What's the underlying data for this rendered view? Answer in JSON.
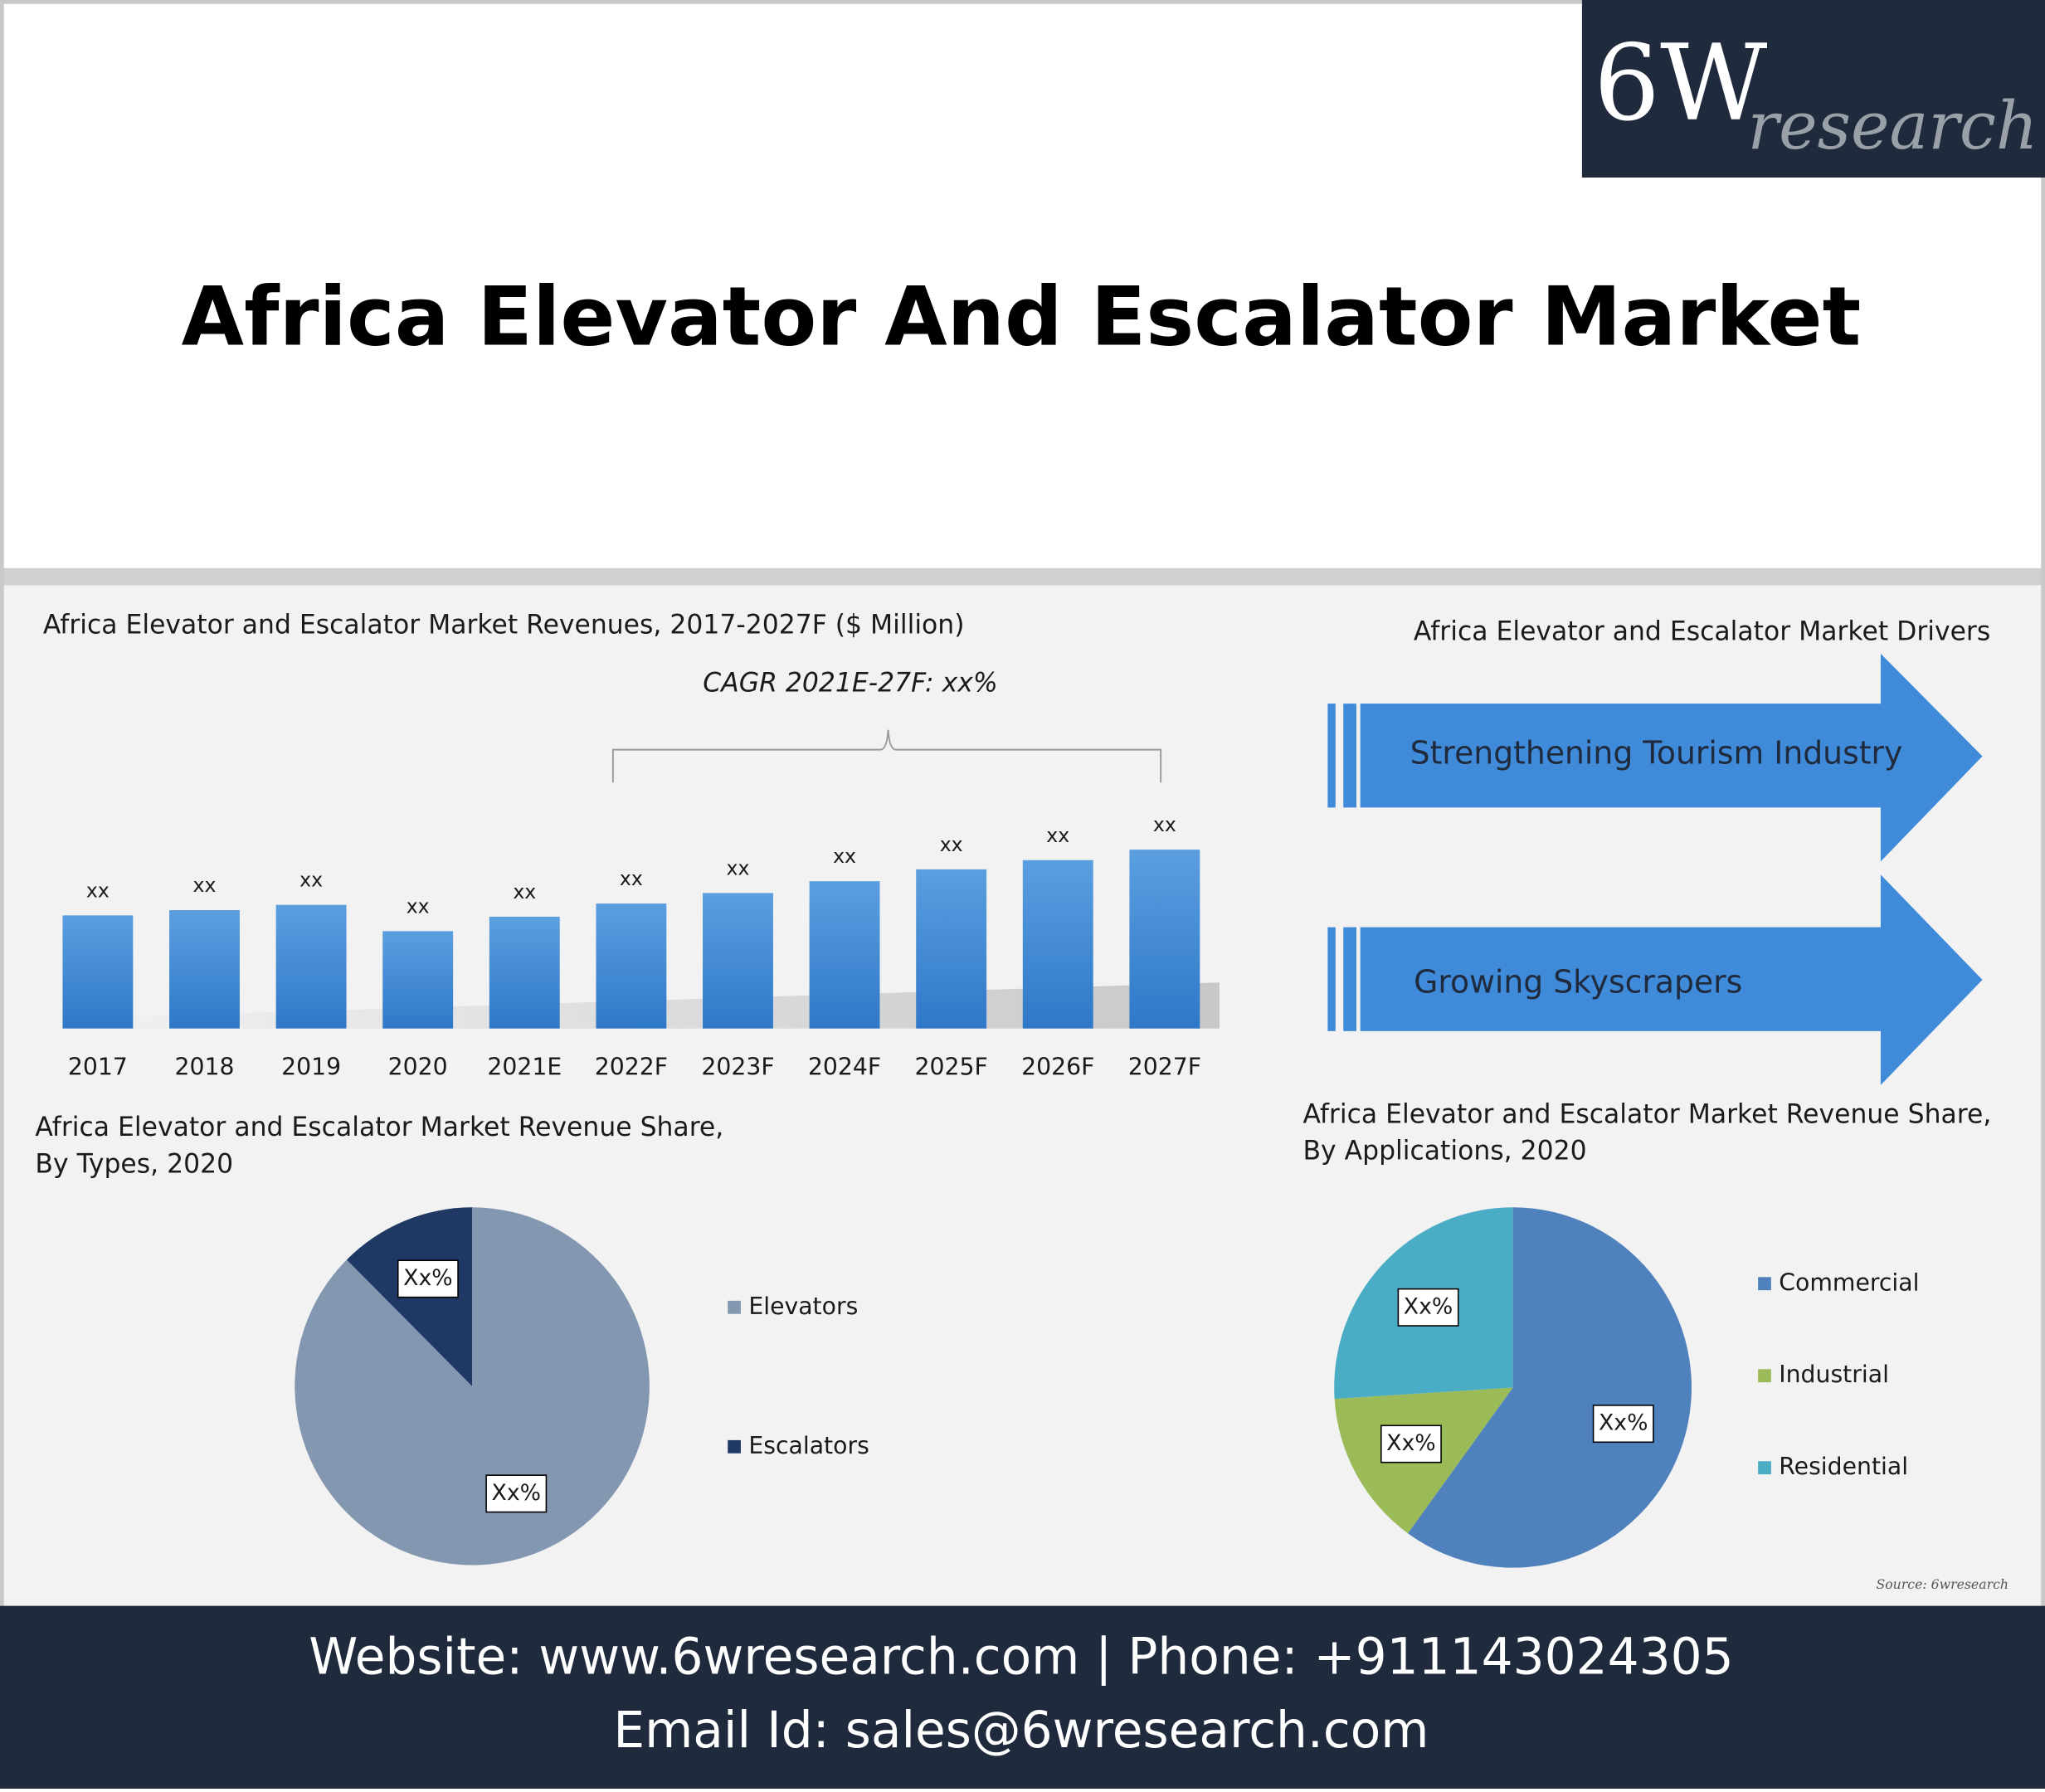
{
  "header": {
    "logo_main": "6W",
    "logo_sub": "research",
    "title": "Africa Elevator And Escalator Market"
  },
  "drivers": {
    "title": "Africa Elevator and Escalator Market Drivers",
    "items": [
      "Strengthening Tourism Industry",
      "Growing Skyscrapers"
    ]
  },
  "chart_data": [
    {
      "type": "bar",
      "title": [
        "Africa Elevator and Escalator Market Revenues, 2017-2027F ($ Million)"
      ],
      "annotation": "CAGR 2021E-27F: xx%",
      "categories": [
        "2017",
        "2018",
        "2019",
        "2020",
        "2021E",
        "2022F",
        "2023F",
        "2024F",
        "2025F",
        "2026F",
        "2027F"
      ],
      "values": [
        86,
        90,
        94,
        74,
        85,
        95,
        103,
        112,
        121,
        128,
        136
      ],
      "value_labels": [
        "xx",
        "xx",
        "xx",
        "xx",
        "xx",
        "xx",
        "xx",
        "xx",
        "xx",
        "xx",
        "xx"
      ],
      "color": "#3f86d2",
      "ylim": [
        0,
        140
      ]
    },
    {
      "type": "pie",
      "title": [
        "Africa  Elevator  and  Escalator  Market  Revenue  Share,",
        "By Types, 2020"
      ],
      "categories": [
        "Elevators",
        "Escalators"
      ],
      "values": [
        87.5,
        12.5
      ],
      "value_labels": [
        "Xx%",
        "Xx%"
      ],
      "colors": [
        "#8497b0",
        "#203864"
      ]
    },
    {
      "type": "pie",
      "title": [
        "Africa Elevator and Escalator Market Revenue Share,",
        "By Applications, 2020"
      ],
      "categories": [
        "Commercial",
        "Industrial",
        "Residential"
      ],
      "values": [
        60,
        14,
        26
      ],
      "value_labels": [
        "Xx%",
        "Xx%",
        "Xx%"
      ],
      "colors": [
        "#4f81bd",
        "#9bbb59",
        "#4bacc6"
      ]
    }
  ],
  "source": "Source: 6wresearch",
  "footer": {
    "line1": "Website: www.6wresearch.com | Phone: +911143024305",
    "line2": "Email Id: sales@6wresearch.com"
  }
}
